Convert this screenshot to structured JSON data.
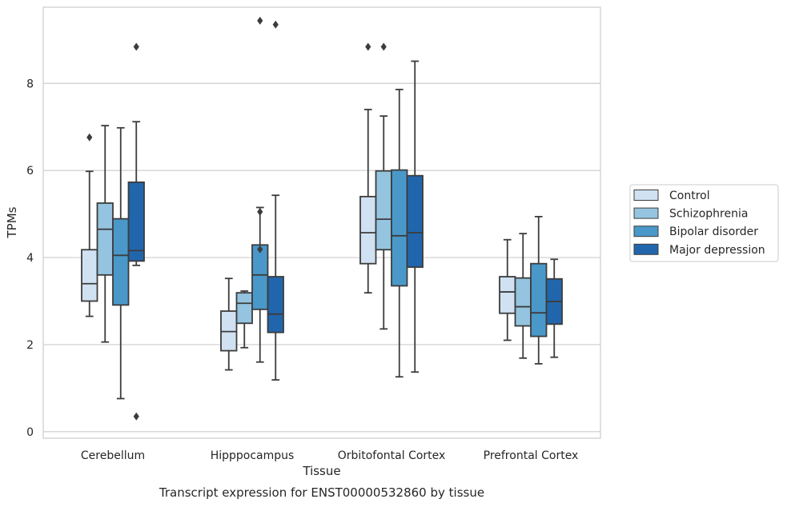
{
  "chart_data": {
    "type": "boxplot",
    "title": "",
    "caption": "Transcript expression for ENST00000532860 by tissue",
    "xlabel": "Tissue",
    "ylabel": "TPMs",
    "ylim": [
      -0.15,
      9.75
    ],
    "yticks": [
      0,
      2,
      4,
      6,
      8
    ],
    "grid": true,
    "legend_position": "right",
    "categories": [
      "Cerebellum",
      "Hipppocampus",
      "Orbitofontal Cortex",
      "Prefrontal Cortex"
    ],
    "series": [
      {
        "name": "Control",
        "color": "#d0e1f2",
        "boxes": [
          {
            "whisker_low": 2.65,
            "q1": 3.0,
            "median": 3.4,
            "q3": 4.18,
            "whisker_high": 5.98,
            "outliers": [
              6.76
            ]
          },
          {
            "whisker_low": 1.42,
            "q1": 1.86,
            "median": 2.3,
            "q3": 2.77,
            "whisker_high": 3.52,
            "outliers": []
          },
          {
            "whisker_low": 3.19,
            "q1": 3.86,
            "median": 4.57,
            "q3": 5.4,
            "whisker_high": 7.4,
            "outliers": [
              8.84
            ]
          },
          {
            "whisker_low": 2.1,
            "q1": 2.72,
            "median": 3.21,
            "q3": 3.56,
            "whisker_high": 4.41,
            "outliers": []
          }
        ]
      },
      {
        "name": "Schizophrenia",
        "color": "#94c4df",
        "boxes": [
          {
            "whisker_low": 2.06,
            "q1": 3.6,
            "median": 4.65,
            "q3": 5.25,
            "whisker_high": 7.03,
            "outliers": []
          },
          {
            "whisker_low": 1.93,
            "q1": 2.49,
            "median": 2.95,
            "q3": 3.19,
            "whisker_high": 3.23,
            "outliers": []
          },
          {
            "whisker_low": 2.36,
            "q1": 4.18,
            "median": 4.88,
            "q3": 5.99,
            "whisker_high": 7.25,
            "outliers": [
              8.84
            ]
          },
          {
            "whisker_low": 1.69,
            "q1": 2.43,
            "median": 2.87,
            "q3": 3.53,
            "whisker_high": 4.55,
            "outliers": []
          }
        ]
      },
      {
        "name": "Bipolar disorder",
        "color": "#4a98c9",
        "boxes": [
          {
            "whisker_low": 0.76,
            "q1": 2.91,
            "median": 4.05,
            "q3": 4.89,
            "whisker_high": 6.98,
            "outliers": []
          },
          {
            "whisker_low": 1.6,
            "q1": 2.81,
            "median": 3.6,
            "q3": 4.29,
            "whisker_high": 5.15,
            "outliers": [
              5.05,
              4.19,
              9.44
            ]
          },
          {
            "whisker_low": 1.26,
            "q1": 3.35,
            "median": 4.5,
            "q3": 6.01,
            "whisker_high": 7.86,
            "outliers": []
          },
          {
            "whisker_low": 1.56,
            "q1": 2.19,
            "median": 2.73,
            "q3": 3.86,
            "whisker_high": 4.94,
            "outliers": []
          }
        ]
      },
      {
        "name": "Major depression",
        "color": "#2166ac",
        "boxes": [
          {
            "whisker_low": 3.82,
            "q1": 3.92,
            "median": 4.16,
            "q3": 5.73,
            "whisker_high": 7.12,
            "outliers": [
              8.84,
              0.35
            ]
          },
          {
            "whisker_low": 1.19,
            "q1": 2.28,
            "median": 2.7,
            "q3": 3.56,
            "whisker_high": 5.43,
            "outliers": [
              9.35
            ]
          },
          {
            "whisker_low": 1.37,
            "q1": 3.78,
            "median": 4.57,
            "q3": 5.88,
            "whisker_high": 8.51,
            "outliers": []
          },
          {
            "whisker_low": 1.71,
            "q1": 2.47,
            "median": 2.99,
            "q3": 3.51,
            "whisker_high": 3.96,
            "outliers": []
          }
        ]
      }
    ]
  },
  "colors": {
    "grid": "#cccccc",
    "frame": "#cccccc",
    "box_edge": "#3c3c3c",
    "legend_edge": "#cccccc"
  }
}
